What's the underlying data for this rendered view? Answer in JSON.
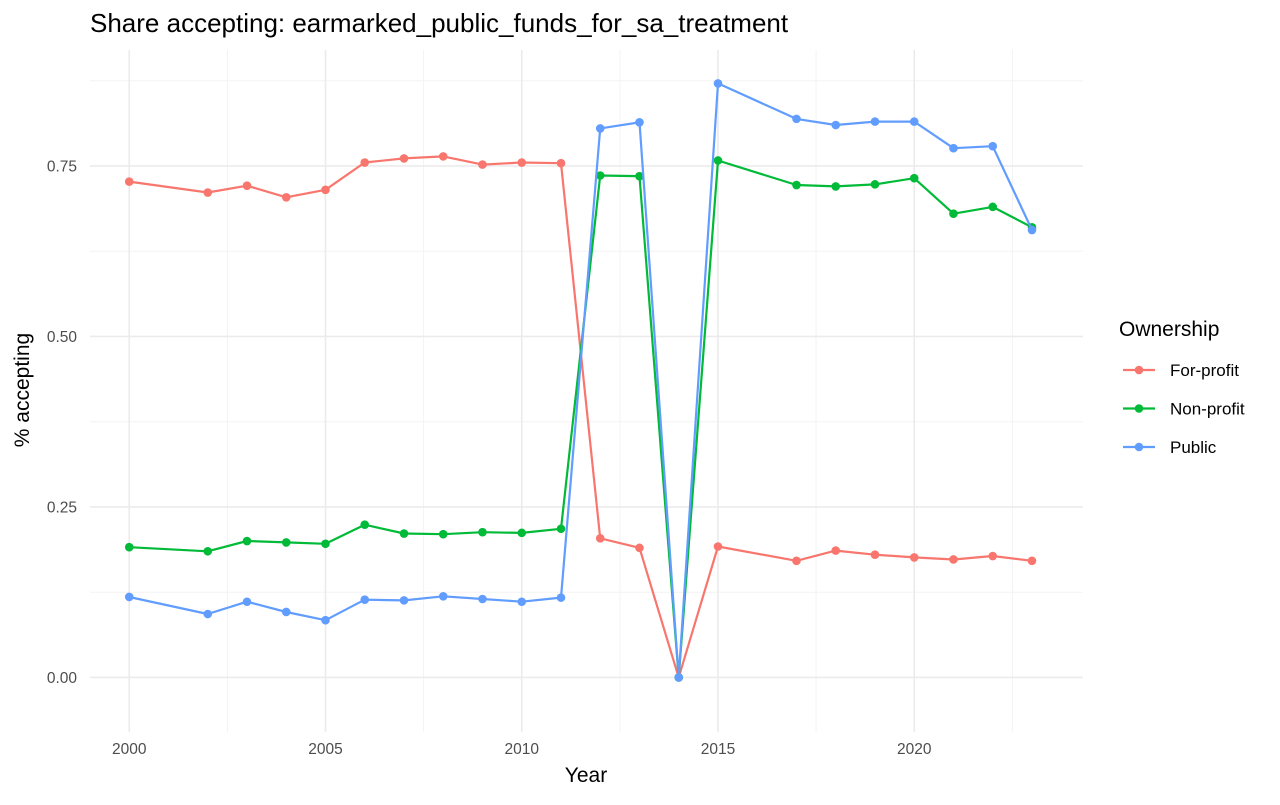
{
  "chart_data": {
    "type": "line",
    "title": "Share accepting: earmarked_public_funds_for_sa_treatment",
    "xlabel": "Year",
    "ylabel": "% accepting",
    "xlim": [
      1999,
      2024.3
    ],
    "ylim": [
      -0.08,
      0.92
    ],
    "x_ticks": [
      2000,
      2005,
      2010,
      2015,
      2020
    ],
    "x_minor_ticks": [
      2002.5,
      2007.5,
      2012.5,
      2017.5,
      2022.5
    ],
    "y_ticks": [
      0.0,
      0.25,
      0.5,
      0.75
    ],
    "y_tick_labels": [
      "0.00",
      "0.25",
      "0.50",
      "0.75"
    ],
    "y_minor_ticks": [
      0.125,
      0.375,
      0.625,
      0.875
    ],
    "grid": true,
    "legend": {
      "title": "Ownership",
      "position": "right"
    },
    "x": [
      2000,
      2002,
      2003,
      2004,
      2005,
      2006,
      2007,
      2008,
      2009,
      2010,
      2011,
      2012,
      2013,
      2014,
      2015,
      2017,
      2018,
      2019,
      2020,
      2021,
      2022,
      2023
    ],
    "series": [
      {
        "name": "For-profit",
        "color": "#f8766d",
        "values": [
          0.727,
          0.711,
          0.721,
          0.704,
          0.715,
          0.755,
          0.761,
          0.764,
          0.752,
          0.755,
          0.754,
          0.204,
          0.19,
          0.0,
          0.192,
          0.171,
          0.186,
          0.18,
          0.176,
          0.173,
          0.178,
          0.171
        ]
      },
      {
        "name": "Non-profit",
        "color": "#00ba38",
        "values": [
          0.191,
          0.185,
          0.2,
          0.198,
          0.196,
          0.224,
          0.211,
          0.21,
          0.213,
          0.212,
          0.218,
          0.736,
          0.735,
          0.0,
          0.758,
          0.722,
          0.72,
          0.723,
          0.732,
          0.68,
          0.69,
          0.66
        ]
      },
      {
        "name": "Public",
        "color": "#619cff",
        "values": [
          0.118,
          0.093,
          0.111,
          0.096,
          0.084,
          0.114,
          0.113,
          0.119,
          0.115,
          0.111,
          0.117,
          0.805,
          0.814,
          0.0,
          0.871,
          0.819,
          0.81,
          0.815,
          0.815,
          0.776,
          0.779,
          0.656
        ]
      }
    ]
  }
}
